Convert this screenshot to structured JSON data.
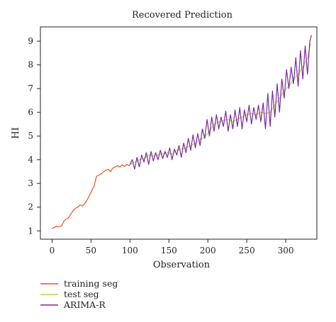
{
  "chart_data": {
    "type": "line",
    "title": "Recovered Prediction",
    "xlabel": "Observation",
    "ylabel": "HI",
    "xlim": [
      -15,
      340
    ],
    "ylim": [
      0.65,
      9.6
    ],
    "xticks": [
      0,
      50,
      100,
      150,
      200,
      250,
      300
    ],
    "yticks": [
      1,
      2,
      3,
      4,
      5,
      6,
      7,
      8,
      9
    ],
    "legend_position": "below-left",
    "series": [
      {
        "name": "training seg",
        "color": "#e8531e",
        "x": [
          0,
          3,
          6,
          9,
          12,
          15,
          18,
          21,
          24,
          27,
          30,
          33,
          36,
          39,
          42,
          45,
          48,
          51,
          54,
          57,
          60,
          63,
          66,
          69,
          72,
          75,
          78,
          81,
          84,
          87,
          90,
          93,
          96,
          99,
          102
        ],
        "values": [
          1.1,
          1.15,
          1.2,
          1.18,
          1.2,
          1.4,
          1.5,
          1.55,
          1.7,
          1.85,
          1.95,
          2.0,
          2.1,
          2.05,
          2.15,
          2.3,
          2.5,
          2.7,
          2.9,
          3.3,
          3.35,
          3.4,
          3.5,
          3.55,
          3.6,
          3.5,
          3.65,
          3.7,
          3.75,
          3.7,
          3.78,
          3.72,
          3.8,
          3.75,
          3.85
        ]
      },
      {
        "name": "test seg",
        "color": "#c8d43a",
        "x": [
          100,
          106,
          112,
          118,
          124,
          130,
          136,
          142,
          148,
          154,
          160,
          166,
          172,
          178,
          184,
          190,
          196,
          202,
          208,
          214,
          220,
          226,
          232,
          238,
          244,
          250,
          256,
          262,
          268,
          274,
          280,
          286,
          292,
          298,
          304,
          310,
          316,
          322,
          328,
          332
        ],
        "values": [
          3.8,
          3.9,
          4.0,
          4.05,
          4.2,
          4.15,
          4.2,
          4.25,
          4.3,
          4.25,
          4.4,
          4.45,
          4.5,
          4.6,
          4.7,
          4.85,
          4.95,
          5.2,
          5.5,
          5.6,
          5.65,
          5.7,
          5.6,
          5.7,
          5.8,
          5.9,
          5.95,
          5.9,
          6.0,
          5.95,
          6.0,
          6.3,
          6.6,
          6.9,
          7.1,
          7.4,
          7.6,
          7.9,
          8.3,
          8.9
        ]
      },
      {
        "name": "ARIMA-R",
        "color": "#7a2b9e",
        "x": [
          100,
          103,
          106,
          109,
          112,
          115,
          118,
          121,
          124,
          127,
          130,
          133,
          136,
          139,
          142,
          145,
          148,
          151,
          154,
          157,
          160,
          163,
          166,
          169,
          172,
          175,
          178,
          181,
          184,
          187,
          190,
          193,
          196,
          199,
          202,
          205,
          208,
          211,
          214,
          217,
          220,
          223,
          226,
          229,
          232,
          235,
          238,
          241,
          244,
          247,
          250,
          253,
          256,
          259,
          262,
          265,
          268,
          271,
          274,
          277,
          280,
          283,
          286,
          289,
          292,
          295,
          298,
          301,
          304,
          307,
          310,
          313,
          316,
          319,
          322,
          325,
          328,
          331,
          333
        ],
        "values": [
          3.8,
          4.0,
          3.6,
          4.1,
          3.7,
          4.2,
          3.9,
          4.3,
          3.8,
          4.35,
          3.95,
          4.3,
          4.0,
          4.4,
          4.05,
          4.35,
          4.1,
          4.5,
          4.0,
          4.45,
          4.2,
          4.6,
          4.1,
          4.7,
          4.3,
          4.9,
          4.4,
          5.05,
          4.5,
          5.1,
          4.6,
          5.3,
          4.9,
          5.7,
          5.0,
          5.8,
          5.2,
          5.9,
          5.3,
          5.8,
          5.4,
          6.05,
          5.2,
          5.9,
          5.3,
          6.1,
          5.4,
          6.2,
          5.3,
          6.1,
          5.6,
          6.3,
          5.5,
          6.2,
          5.7,
          6.3,
          5.6,
          6.4,
          5.3,
          6.8,
          5.4,
          6.9,
          5.8,
          7.2,
          6.0,
          7.4,
          6.6,
          7.8,
          7.0,
          7.9,
          7.2,
          8.3,
          7.1,
          8.6,
          7.4,
          8.8,
          7.6,
          9.0,
          9.25
        ]
      }
    ]
  }
}
